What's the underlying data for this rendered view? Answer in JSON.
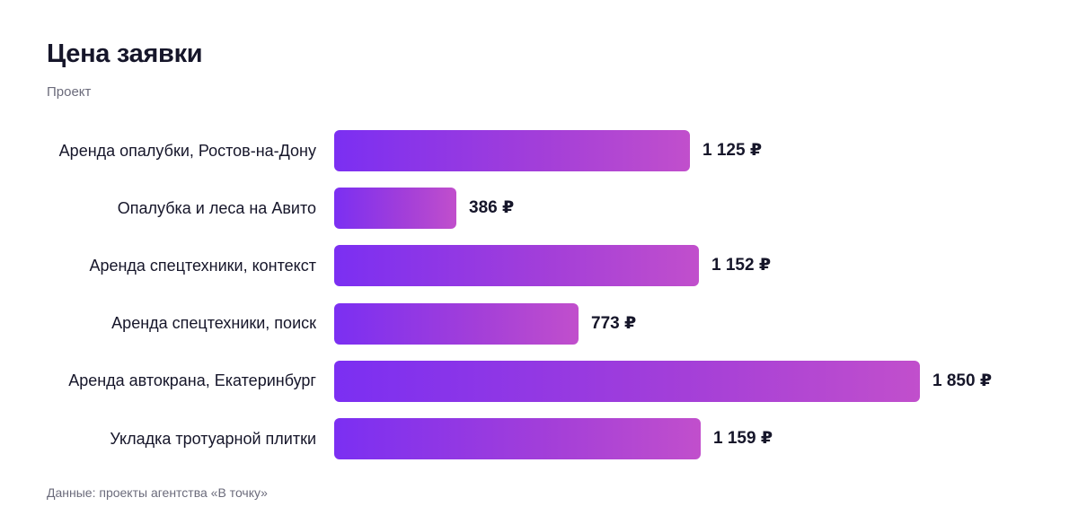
{
  "header": {
    "title": "Цена заявки",
    "subtitle": "Проект"
  },
  "footer": {
    "source": "Данные: проекты агентства «В точку»"
  },
  "chart_data": {
    "type": "bar",
    "orientation": "horizontal",
    "title": "Цена заявки",
    "subtitle": "Проект",
    "categories": [
      "Аренда опалубки, Ростов-на-Дону",
      "Опалубка и леса на Авито",
      "Аренда спецтехники, контекст",
      "Аренда спецтехники, поиск",
      "Аренда автокрана, Екатеринбург",
      "Укладка тротуарной плитки"
    ],
    "values": [
      1125,
      386,
      1152,
      773,
      1850,
      1159
    ],
    "value_labels": [
      "1 125 ₽",
      "386 ₽",
      "1 152 ₽",
      "773 ₽",
      "1 850 ₽",
      "1 159 ₽"
    ],
    "unit": "₽",
    "xlim": [
      0,
      1850
    ],
    "grid": false,
    "legend": "none",
    "colors": {
      "bar_start": "#7b2ff2",
      "bar_end": "#c14fcc",
      "text": "#16162a"
    }
  }
}
